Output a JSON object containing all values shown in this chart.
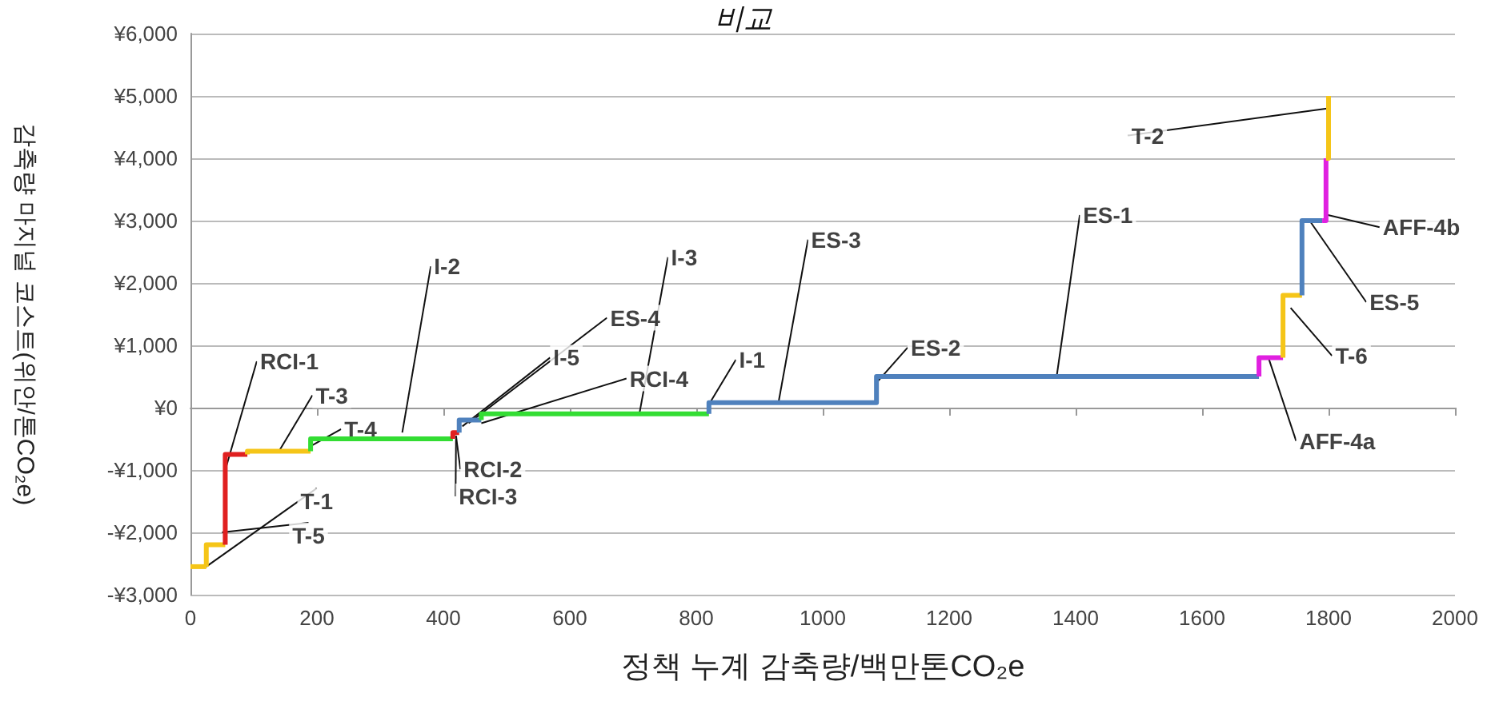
{
  "chart_data": {
    "type": "line",
    "title": "비교",
    "xlabel": "정책 누계 감축량/백만톤CO₂e",
    "ylabel": "감축량 마지널 코스트(위안/톤CO₂e)",
    "xlim": [
      0,
      2000
    ],
    "xticks": [
      0,
      200,
      400,
      600,
      800,
      1000,
      1200,
      1400,
      1600,
      1800,
      2000
    ],
    "ylim": [
      -3000,
      6000
    ],
    "yticks": [
      {
        "value": -3000,
        "label": "-¥3,000"
      },
      {
        "value": -2000,
        "label": "-¥2,000"
      },
      {
        "value": -1000,
        "label": "-¥1,000"
      },
      {
        "value": 0,
        "label": "¥0"
      },
      {
        "value": 1000,
        "label": "¥1,000"
      },
      {
        "value": 2000,
        "label": "¥2,000"
      },
      {
        "value": 3000,
        "label": "¥3,000"
      },
      {
        "value": 4000,
        "label": "¥4,000"
      },
      {
        "value": 5000,
        "label": "¥5,000"
      },
      {
        "value": 6000,
        "label": "¥6,000"
      }
    ],
    "grid": "y",
    "marker": "none",
    "line_style": "solid",
    "series": [
      {
        "color": "#f5c518",
        "x": [
          0,
          25
        ],
        "values": [
          -2550,
          -2550
        ]
      },
      {
        "color": "#f5c518",
        "x": [
          25,
          25,
          55
        ],
        "values": [
          -2550,
          -2200,
          -2200
        ]
      },
      {
        "color": "#e02020",
        "x": [
          55,
          55,
          90
        ],
        "values": [
          -2200,
          -750,
          -750
        ]
      },
      {
        "color": "#f5c518",
        "x": [
          90,
          90,
          190
        ],
        "values": [
          -750,
          -700,
          -700
        ]
      },
      {
        "color": "#33dd33",
        "x": [
          190,
          190,
          415
        ],
        "values": [
          -700,
          -500,
          -500
        ]
      },
      {
        "color": "#e02020",
        "x": [
          415,
          415,
          425
        ],
        "values": [
          -500,
          -400,
          -400
        ]
      },
      {
        "color": "#4f81bd",
        "x": [
          425,
          425,
          460
        ],
        "values": [
          -400,
          -200,
          -200
        ]
      },
      {
        "color": "#33dd33",
        "x": [
          460,
          460,
          820
        ],
        "values": [
          -200,
          -100,
          -100
        ]
      },
      {
        "color": "#4f81bd",
        "x": [
          820,
          820,
          1085,
          1085,
          1690
        ],
        "values": [
          -100,
          80,
          80,
          500,
          500
        ]
      },
      {
        "color": "#e020e0",
        "x": [
          1690,
          1690,
          1728
        ],
        "values": [
          500,
          800,
          800
        ]
      },
      {
        "color": "#f5c518",
        "x": [
          1728,
          1728,
          1758
        ],
        "values": [
          800,
          1800,
          1800
        ]
      },
      {
        "color": "#4f81bd",
        "x": [
          1758,
          1758,
          1790
        ],
        "values": [
          1800,
          3000,
          3000
        ]
      },
      {
        "color": "#e020e0",
        "x": [
          1790,
          1796,
          1796
        ],
        "values": [
          3000,
          3000,
          4000
        ]
      },
      {
        "color": "#f5c518",
        "x": [
          1796,
          1800,
          1800
        ],
        "values": [
          4000,
          4000,
          5000
        ]
      }
    ],
    "annotations": [
      {
        "text": "RCI-1",
        "x": 55,
        "y": -1000
      },
      {
        "text": "T-3",
        "x": 140,
        "y": -700
      },
      {
        "text": "T-4",
        "x": 193,
        "y": -600
      },
      {
        "text": "I-2",
        "x": 335,
        "y": -400
      },
      {
        "text": "T-1",
        "x": 25,
        "y": -2550
      },
      {
        "text": "T-5",
        "x": 50,
        "y": -2000
      },
      {
        "text": "I-5",
        "x": 430,
        "y": -300
      },
      {
        "text": "ES-4",
        "x": 440,
        "y": -250
      },
      {
        "text": "RCI-4",
        "x": 460,
        "y": -250
      },
      {
        "text": "RCI-2",
        "x": 420,
        "y": -450
      },
      {
        "text": "RCI-3",
        "x": 420,
        "y": -500
      },
      {
        "text": "I-3",
        "x": 710,
        "y": -100
      },
      {
        "text": "I-1",
        "x": 820,
        "y": 50
      },
      {
        "text": "ES-3",
        "x": 930,
        "y": 80
      },
      {
        "text": "ES-2",
        "x": 1085,
        "y": 400
      },
      {
        "text": "ES-1",
        "x": 1370,
        "y": 500
      },
      {
        "text": "T-2",
        "x": 1800,
        "y": 4800
      },
      {
        "text": "AFF-4b",
        "x": 1795,
        "y": 3100
      },
      {
        "text": "ES-5",
        "x": 1770,
        "y": 3000
      },
      {
        "text": "T-6",
        "x": 1740,
        "y": 1600
      },
      {
        "text": "AFF-4a",
        "x": 1705,
        "y": 800
      }
    ]
  }
}
